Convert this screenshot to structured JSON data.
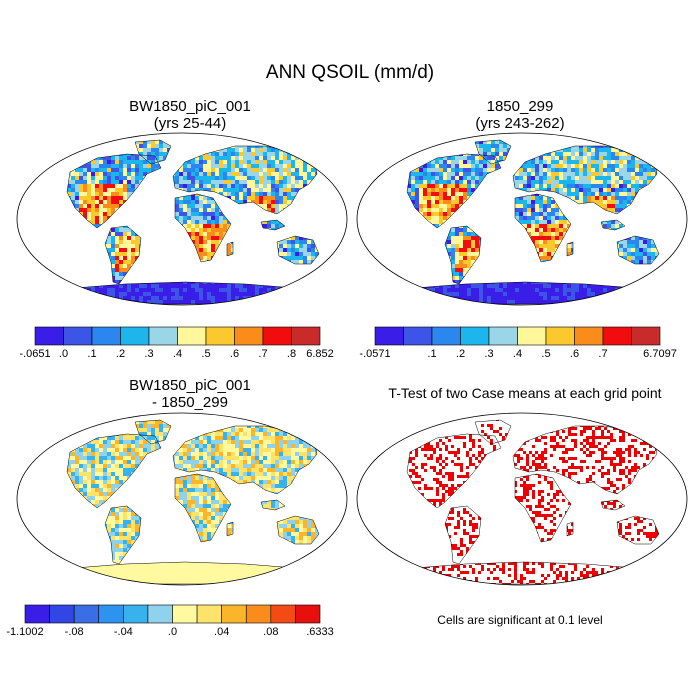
{
  "figure": {
    "title": "ANN QSOIL (mm/d)",
    "significance_note": "Cells are significant at 0.1 level"
  },
  "panels": [
    {
      "id": "case1",
      "title_line1": "BW1850_piC_001",
      "title_line2": "(yrs 25-44)",
      "colorbar": {
        "labels": [
          "-.0651",
          ".0",
          ".1",
          ".2",
          ".3",
          ".4",
          ".5",
          ".6",
          ".7",
          ".8",
          "6.852"
        ],
        "colors": [
          "#3a1ee8",
          "#3d55e6",
          "#2c86ef",
          "#1db6ec",
          "#9ad5e8",
          "#fff79a",
          "#fbc92e",
          "#f98c1a",
          "#f10d0d",
          "#c92a2a"
        ]
      }
    },
    {
      "id": "case2",
      "title_line1": "1850_299",
      "title_line2": "(yrs 243-262)",
      "colorbar": {
        "labels": [
          "-.0571",
          "",
          ".1",
          ".2",
          ".3",
          ".4",
          ".5",
          ".6",
          ".7",
          "",
          "6.7097"
        ],
        "colors": [
          "#3a1ee8",
          "#3d55e6",
          "#2c86ef",
          "#1db6ec",
          "#9ad5e8",
          "#fff79a",
          "#fbc92e",
          "#f98c1a",
          "#f10d0d",
          "#c92a2a"
        ]
      }
    },
    {
      "id": "diff",
      "title_line1": "BW1850_piC_001",
      "title_line2": "- 1850_299",
      "colorbar": {
        "labels": [
          "-1.1002",
          "",
          "-.08",
          "",
          "-.04",
          "",
          ".0",
          "",
          ".04",
          "",
          ".08",
          "",
          ".6333"
        ],
        "colors": [
          "#3a1ee8",
          "#3246e6",
          "#3a6ee6",
          "#2c93ef",
          "#37b2ec",
          "#8fd2ee",
          "#fffaa0",
          "#fde36a",
          "#fbb52a",
          "#f98c1a",
          "#f44a14",
          "#e8100e"
        ]
      }
    },
    {
      "id": "ttest",
      "title_line1": "T-Test of two Case means at each grid point"
    }
  ]
}
